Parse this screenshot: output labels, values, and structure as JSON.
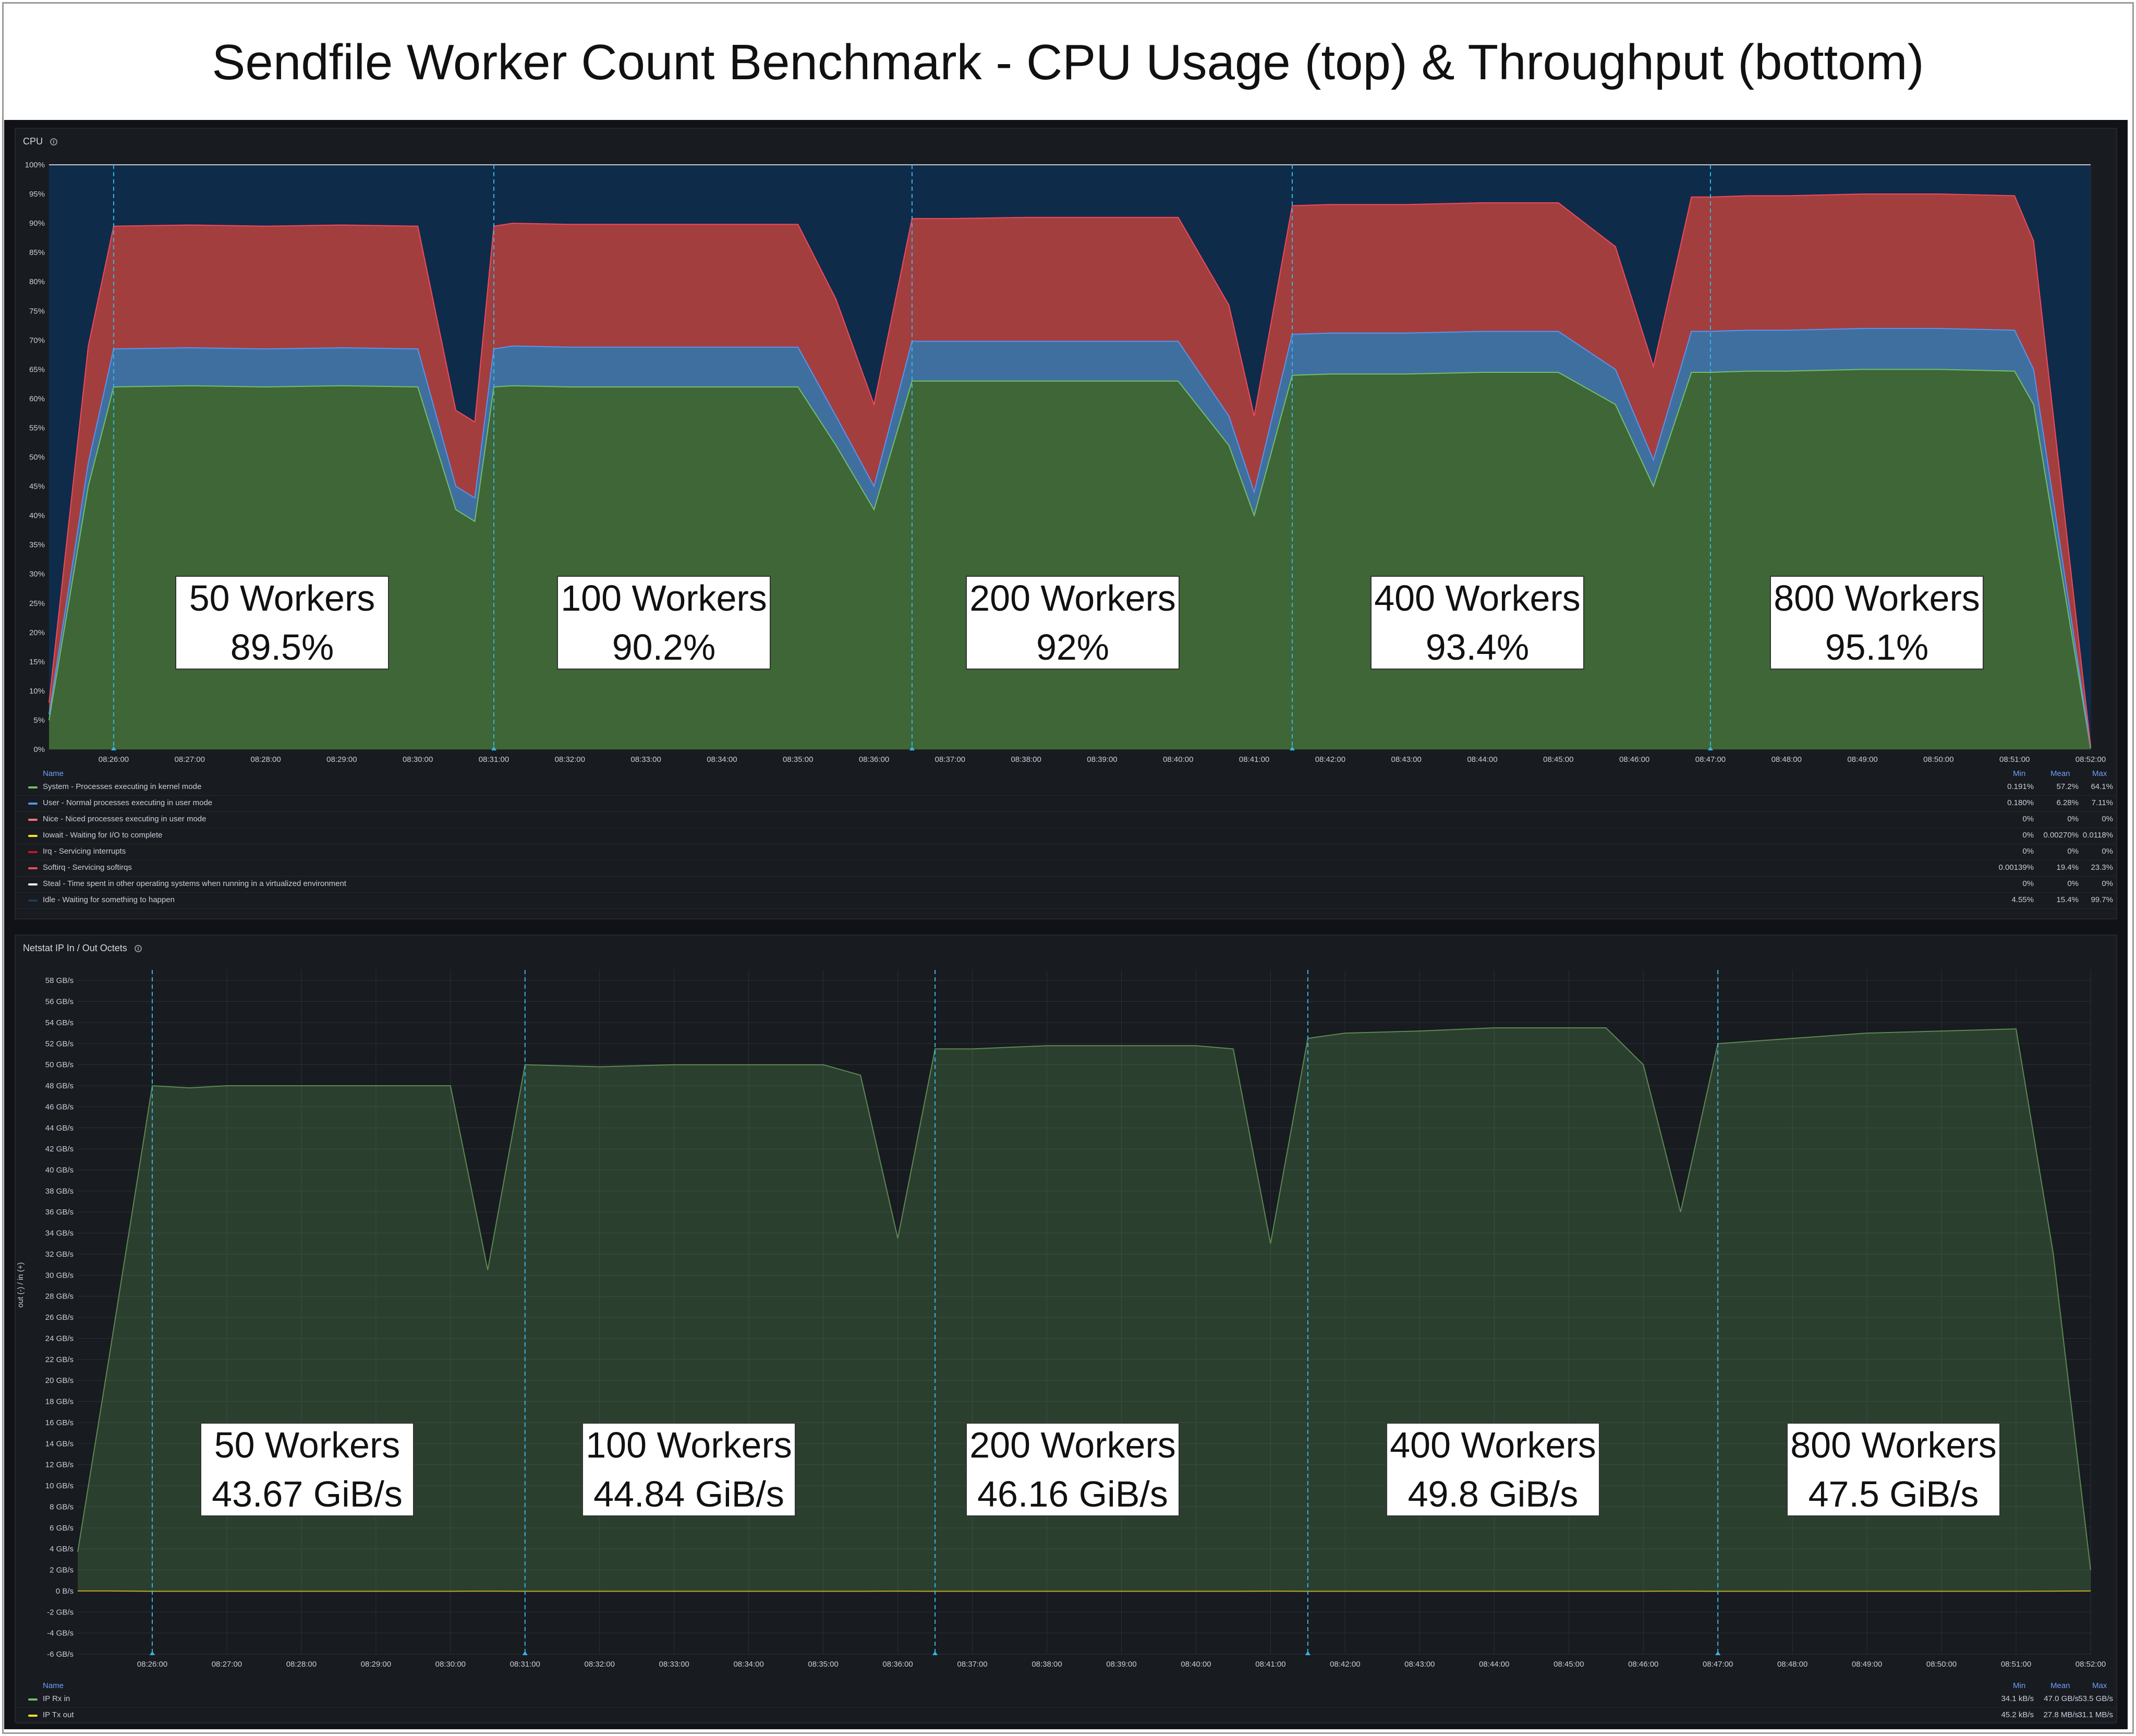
{
  "title": "Sendfile Worker Count Benchmark - CPU Usage (top) & Throughput (bottom)",
  "cpu_panel": {
    "title": "CPU",
    "y_ticks": [
      "0%",
      "5%",
      "10%",
      "15%",
      "20%",
      "25%",
      "30%",
      "35%",
      "40%",
      "45%",
      "50%",
      "55%",
      "60%",
      "65%",
      "70%",
      "75%",
      "80%",
      "85%",
      "90%",
      "95%",
      "100%"
    ],
    "x_ticks": [
      "08:26:00",
      "08:27:00",
      "08:28:00",
      "08:29:00",
      "08:30:00",
      "08:31:00",
      "08:32:00",
      "08:33:00",
      "08:34:00",
      "08:35:00",
      "08:36:00",
      "08:37:00",
      "08:38:00",
      "08:39:00",
      "08:40:00",
      "08:41:00",
      "08:42:00",
      "08:43:00",
      "08:44:00",
      "08:45:00",
      "08:46:00",
      "08:47:00",
      "08:48:00",
      "08:49:00",
      "08:50:00",
      "08:51:00",
      "08:52:00"
    ],
    "legend_headers": {
      "name": "Name",
      "min": "Min",
      "mean": "Mean",
      "max": "Max"
    },
    "legend": [
      {
        "name": "System - Processes executing in kernel mode",
        "color": "#73bf69",
        "min": "0.191%",
        "mean": "57.2%",
        "max": "64.1%"
      },
      {
        "name": "User - Normal processes executing in user mode",
        "color": "#5794f2",
        "min": "0.180%",
        "mean": "6.28%",
        "max": "7.11%"
      },
      {
        "name": "Nice - Niced processes executing in user mode",
        "color": "#ff7383",
        "min": "0%",
        "mean": "0%",
        "max": "0%"
      },
      {
        "name": "Iowait - Waiting for I/O to complete",
        "color": "#fade2a",
        "min": "0%",
        "mean": "0.00270%",
        "max": "0.0118%"
      },
      {
        "name": "Irq - Servicing interrupts",
        "color": "#c4162a",
        "min": "0%",
        "mean": "0%",
        "max": "0%"
      },
      {
        "name": "Softirq - Servicing softirqs",
        "color": "#f2495c",
        "min": "0.00139%",
        "mean": "19.4%",
        "max": "23.3%"
      },
      {
        "name": "Steal - Time spent in other operating systems when running in a virtualized environment",
        "color": "#ffffff",
        "min": "0%",
        "mean": "0%",
        "max": "0%"
      },
      {
        "name": "Idle - Waiting for something to happen",
        "color": "#1f3a5c",
        "min": "4.55%",
        "mean": "15.4%",
        "max": "99.7%"
      }
    ],
    "callouts": [
      {
        "line1": "50 Workers",
        "line2": "89.5%"
      },
      {
        "line1": "100 Workers",
        "line2": "90.2%"
      },
      {
        "line1": "200 Workers",
        "line2": "92%"
      },
      {
        "line1": "400 Workers",
        "line2": "93.4%"
      },
      {
        "line1": "800 Workers",
        "line2": "95.1%"
      }
    ]
  },
  "net_panel": {
    "title": "Netstat IP In / Out Octets",
    "y_axis_label": "out (-) / in (+)",
    "y_ticks": [
      "-6 GB/s",
      "-4 GB/s",
      "-2 GB/s",
      "0 B/s",
      "2 GB/s",
      "4 GB/s",
      "6 GB/s",
      "8 GB/s",
      "10 GB/s",
      "12 GB/s",
      "14 GB/s",
      "16 GB/s",
      "18 GB/s",
      "20 GB/s",
      "22 GB/s",
      "24 GB/s",
      "26 GB/s",
      "28 GB/s",
      "30 GB/s",
      "32 GB/s",
      "34 GB/s",
      "36 GB/s",
      "38 GB/s",
      "40 GB/s",
      "42 GB/s",
      "44 GB/s",
      "46 GB/s",
      "48 GB/s",
      "50 GB/s",
      "52 GB/s",
      "54 GB/s",
      "56 GB/s",
      "58 GB/s"
    ],
    "x_ticks": [
      "08:26:00",
      "08:27:00",
      "08:28:00",
      "08:29:00",
      "08:30:00",
      "08:31:00",
      "08:32:00",
      "08:33:00",
      "08:34:00",
      "08:35:00",
      "08:36:00",
      "08:37:00",
      "08:38:00",
      "08:39:00",
      "08:40:00",
      "08:41:00",
      "08:42:00",
      "08:43:00",
      "08:44:00",
      "08:45:00",
      "08:46:00",
      "08:47:00",
      "08:48:00",
      "08:49:00",
      "08:50:00",
      "08:51:00",
      "08:52:00"
    ],
    "legend_headers": {
      "name": "Name",
      "min": "Min",
      "mean": "Mean",
      "max": "Max"
    },
    "legend": [
      {
        "name": "IP Rx in",
        "color": "#73bf69",
        "min": "34.1 kB/s",
        "mean": "47.0 GB/s",
        "max": "53.5 GB/s"
      },
      {
        "name": "IP Tx out",
        "color": "#fade2a",
        "min": "45.2 kB/s",
        "mean": "27.8 MB/s",
        "max": "31.1 MB/s"
      }
    ],
    "callouts": [
      {
        "line1": "50 Workers",
        "line2": "43.67 GiB/s"
      },
      {
        "line1": "100 Workers",
        "line2": "44.84 GiB/s"
      },
      {
        "line1": "200 Workers",
        "line2": "46.16 GiB/s"
      },
      {
        "line1": "400 Workers",
        "line2": "49.8 GiB/s"
      },
      {
        "line1": "800 Workers",
        "line2": "47.5 GiB/s"
      }
    ]
  },
  "chart_data": [
    {
      "type": "area",
      "title": "CPU",
      "stacked": true,
      "ylim": [
        0,
        100
      ],
      "y_unit": "%",
      "x": [
        "08:25:09",
        "08:25:40",
        "08:26:00",
        "08:27:00",
        "08:28:00",
        "08:29:00",
        "08:30:00",
        "08:30:30",
        "08:30:45",
        "08:31:00",
        "08:31:15",
        "08:32:00",
        "08:33:00",
        "08:34:00",
        "08:35:00",
        "08:35:30",
        "08:36:00",
        "08:36:30",
        "08:37:00",
        "08:38:00",
        "08:39:00",
        "08:40:00",
        "08:40:40",
        "08:41:00",
        "08:41:30",
        "08:42:00",
        "08:43:00",
        "08:44:00",
        "08:45:00",
        "08:45:45",
        "08:46:15",
        "08:46:45",
        "08:47:00",
        "08:47:30",
        "08:48:00",
        "08:49:00",
        "08:50:00",
        "08:51:00",
        "08:51:15",
        "08:52:00"
      ],
      "annotations_at": [
        "08:26:00",
        "08:31:00",
        "08:36:30",
        "08:41:30",
        "08:47:00"
      ],
      "series": [
        {
          "name": "System - Processes executing in kernel mode",
          "color": "#73bf69",
          "values": [
            5,
            45,
            62,
            62.2,
            62,
            62.2,
            62,
            41,
            39,
            62,
            62.2,
            62,
            62,
            62,
            62,
            52,
            41,
            63,
            63,
            63,
            63,
            63,
            52,
            40,
            64,
            64.2,
            64.2,
            64.5,
            64.5,
            59,
            45,
            64.5,
            64.5,
            64.7,
            64.7,
            65,
            65,
            64.7,
            59,
            0.2
          ]
        },
        {
          "name": "User - Normal processes executing in user mode",
          "color": "#5794f2",
          "values": [
            1,
            4,
            6.5,
            6.5,
            6.5,
            6.5,
            6.5,
            4,
            4,
            6.5,
            6.8,
            6.8,
            6.8,
            6.8,
            6.8,
            5,
            4,
            6.8,
            6.8,
            6.8,
            6.8,
            6.8,
            5,
            4,
            7,
            7,
            7,
            7,
            7,
            6,
            4.5,
            7,
            7,
            7,
            7,
            7,
            7,
            7,
            6,
            0.2
          ]
        },
        {
          "name": "Softirq - Servicing softirqs",
          "color": "#f2495c",
          "values": [
            2,
            20,
            21,
            21,
            21,
            21,
            21,
            13,
            13,
            21,
            21,
            21,
            21,
            21,
            21,
            20,
            14,
            21,
            21,
            21.2,
            21.2,
            21.2,
            19,
            13,
            22,
            22,
            22,
            22,
            22,
            21,
            16,
            23,
            23,
            23,
            23,
            23,
            23,
            23,
            22,
            0.2
          ]
        },
        {
          "name": "Idle - Waiting for something to happen",
          "color": "#1f3a5c",
          "values": [
            92,
            31,
            10.5,
            10.3,
            10.5,
            10.3,
            10.5,
            42,
            44,
            10.5,
            10,
            10.2,
            10.2,
            10.2,
            10.2,
            23,
            41,
            9.2,
            9.2,
            9,
            9,
            9,
            24,
            43,
            7,
            6.8,
            6.8,
            6.5,
            6.5,
            14,
            34.5,
            5.5,
            5.5,
            5.3,
            5.3,
            5,
            5,
            5.3,
            13,
            99.4
          ]
        }
      ]
    },
    {
      "type": "area",
      "title": "Netstat IP In / Out Octets",
      "ylabel": "out (-) / in (+)",
      "ylim": [
        -6,
        59
      ],
      "y_unit": "GB/s",
      "x": [
        "08:25:00",
        "08:25:25",
        "08:26:00",
        "08:26:30",
        "08:27:00",
        "08:28:00",
        "08:29:00",
        "08:30:00",
        "08:30:30",
        "08:31:00",
        "08:32:00",
        "08:33:00",
        "08:34:00",
        "08:35:00",
        "08:35:30",
        "08:36:00",
        "08:36:30",
        "08:37:00",
        "08:38:00",
        "08:39:00",
        "08:40:00",
        "08:40:30",
        "08:41:00",
        "08:41:30",
        "08:42:00",
        "08:43:00",
        "08:44:00",
        "08:45:00",
        "08:45:30",
        "08:46:00",
        "08:46:30",
        "08:47:00",
        "08:48:00",
        "08:49:00",
        "08:50:00",
        "08:50:30",
        "08:51:00",
        "08:51:30",
        "08:52:00"
      ],
      "annotations_at": [
        "08:26:00",
        "08:31:00",
        "08:36:30",
        "08:41:30",
        "08:47:00"
      ],
      "series": [
        {
          "name": "IP Rx in",
          "color": "#73bf69",
          "values": [
            3.7,
            22,
            48,
            47.8,
            48,
            48,
            48,
            48,
            30.5,
            50,
            49.8,
            50,
            50,
            50,
            49,
            33.5,
            51.5,
            51.5,
            51.8,
            51.8,
            51.8,
            51.5,
            33,
            52.5,
            53,
            53.2,
            53.5,
            53.5,
            53.5,
            50,
            36,
            52,
            52.5,
            53,
            53.2,
            53.3,
            53.4,
            32,
            2
          ]
        },
        {
          "name": "IP Tx out",
          "color": "#fade2a",
          "values": [
            0,
            0,
            -0.03,
            -0.03,
            -0.03,
            -0.03,
            -0.03,
            -0.03,
            -0.02,
            -0.03,
            -0.03,
            -0.03,
            -0.03,
            -0.03,
            -0.03,
            -0.02,
            -0.03,
            -0.03,
            -0.03,
            -0.03,
            -0.03,
            -0.03,
            -0.02,
            -0.03,
            -0.03,
            -0.03,
            -0.03,
            -0.03,
            -0.03,
            -0.03,
            -0.02,
            -0.03,
            -0.03,
            -0.03,
            -0.03,
            -0.03,
            -0.03,
            -0.02,
            0
          ]
        }
      ]
    }
  ]
}
